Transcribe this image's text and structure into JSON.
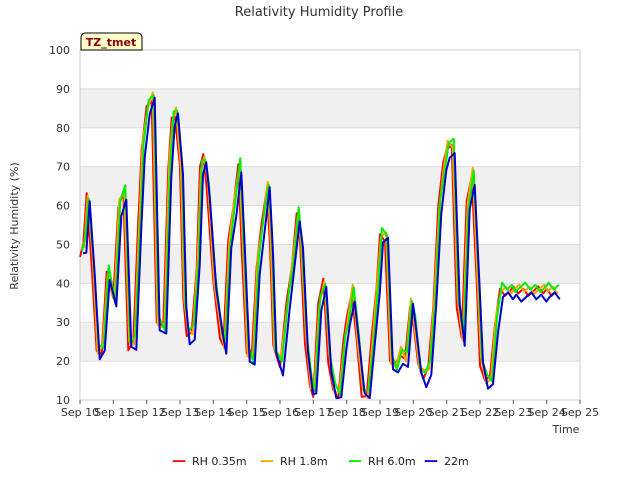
{
  "chart_data": {
    "type": "line",
    "title": "Relativity Humidity Profile",
    "xlabel": "Time",
    "ylabel": "Relativity Humidity (%)",
    "ylim": [
      10,
      100
    ],
    "yticks": [
      10,
      20,
      30,
      40,
      50,
      60,
      70,
      80,
      90,
      100
    ],
    "xlim": [
      0,
      15
    ],
    "xticks": [
      "Sep 10",
      "Sep 11",
      "Sep 12",
      "Sep 13",
      "Sep 14",
      "Sep 15",
      "Sep 16",
      "Sep 17",
      "Sep 18",
      "Sep 19",
      "Sep 20",
      "Sep 21",
      "Sep 22",
      "Sep 23",
      "Sep 24",
      "Sep 25"
    ],
    "site_label": "TZ_tmet",
    "grid": "horizontal bands",
    "legend_position": "bottom",
    "series": [
      {
        "name": "RH 0.35m",
        "color": "#ff0000",
        "offset": 0.0
      },
      {
        "name": "RH 1.8m",
        "color": "#ffa500",
        "offset": 0.5
      },
      {
        "name": "RH 6.0m",
        "color": "#00ee00",
        "offset": 1.0
      },
      {
        "name": "22m",
        "color": "#0000cc",
        "offset": -1.5
      }
    ],
    "x": [
      0.0,
      0.1,
      0.2,
      0.35,
      0.5,
      0.65,
      0.8,
      1.0,
      1.15,
      1.3,
      1.45,
      1.6,
      1.75,
      1.85,
      2.0,
      2.15,
      2.3,
      2.5,
      2.65,
      2.75,
      2.85,
      3.0,
      3.1,
      3.2,
      3.35,
      3.5,
      3.6,
      3.7,
      3.8,
      4.0,
      4.2,
      4.3,
      4.45,
      4.6,
      4.75,
      4.85,
      5.0,
      5.15,
      5.3,
      5.45,
      5.6,
      5.7,
      5.8,
      6.0,
      6.2,
      6.35,
      6.5,
      6.6,
      6.75,
      6.9,
      7.0,
      7.15,
      7.3,
      7.45,
      7.6,
      7.75,
      7.9,
      8.0,
      8.15,
      8.3,
      8.45,
      8.6,
      8.75,
      8.9,
      9.0,
      9.15,
      9.3,
      9.45,
      9.6,
      9.75,
      9.9,
      10.0,
      10.15,
      10.3,
      10.45,
      10.6,
      10.75,
      10.9,
      11.0,
      11.15,
      11.3,
      11.45,
      11.6,
      11.75,
      11.9,
      12.0,
      12.15,
      12.3,
      12.45,
      12.6,
      12.75,
      12.9,
      13.0,
      13.15,
      13.3,
      13.45,
      13.6,
      13.75,
      13.9,
      14.0,
      14.15,
      14.3
    ],
    "values": [
      48,
      50,
      62,
      45,
      22,
      23,
      43,
      35,
      60,
      63,
      24,
      25,
      55,
      75,
      85,
      88,
      30,
      28,
      70,
      82,
      84,
      70,
      35,
      27,
      27,
      45,
      70,
      72,
      65,
      40,
      27,
      24,
      50,
      60,
      70,
      50,
      22,
      20,
      45,
      55,
      65,
      50,
      23,
      19,
      35,
      45,
      58,
      50,
      25,
      13,
      12,
      35,
      40,
      20,
      12,
      11,
      25,
      30,
      38,
      25,
      12,
      11,
      25,
      40,
      52,
      52,
      20,
      18,
      22,
      20,
      35,
      30,
      18,
      16,
      18,
      35,
      60,
      70,
      75,
      75,
      35,
      26,
      60,
      68,
      40,
      20,
      15,
      15,
      30,
      38,
      38,
      38,
      38,
      38,
      38,
      38,
      38,
      38,
      38,
      38,
      38,
      38
    ]
  },
  "legend_marker": "—"
}
